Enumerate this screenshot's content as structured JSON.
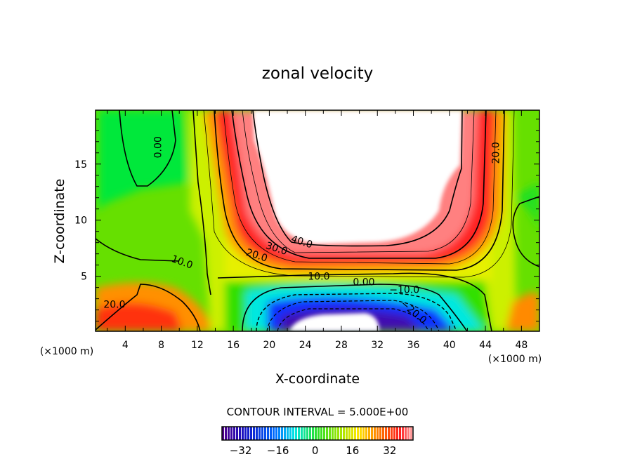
{
  "chart_data": {
    "type": "heatmap",
    "subtype": "filled-contour",
    "title": "zonal velocity",
    "xlabel": "X-coordinate",
    "ylabel": "Z-coordinate",
    "x_unit_label": "(×1000 m)",
    "y_unit_label": "(×1000 m)",
    "xlim": [
      0.7,
      50
    ],
    "ylim": [
      0.1,
      19.8
    ],
    "xticks": [
      4,
      8,
      12,
      16,
      20,
      24,
      28,
      32,
      36,
      40,
      44,
      48
    ],
    "yticks": [
      5,
      10,
      15
    ],
    "contour_interval_text": "CONTOUR INTERVAL = 5.000E+00",
    "contour_interval": 5.0,
    "contour_labels": [
      {
        "text": "0.00",
        "x": 8.0,
        "z": 16.5
      },
      {
        "text": "20.0",
        "x": 45.5,
        "z": 16.0
      },
      {
        "text": "40.0",
        "x": 23.5,
        "z": 7.8
      },
      {
        "text": "30.0",
        "x": 20.7,
        "z": 7.2
      },
      {
        "text": "20.0",
        "x": 18.5,
        "z": 6.6
      },
      {
        "text": "10.0",
        "x": 10.2,
        "z": 6.0
      },
      {
        "text": "10.0",
        "x": 25.5,
        "z": 4.7
      },
      {
        "text": "0.00",
        "x": 30.5,
        "z": 4.2
      },
      {
        "text": "-10.0",
        "x": 35.0,
        "z": 3.5
      },
      {
        "text": "-20.0",
        "x": 35.8,
        "z": 1.6
      },
      {
        "text": "20.0",
        "x": 2.8,
        "z": 2.2
      }
    ],
    "colorbar": {
      "range": [
        -40,
        42
      ],
      "tick_labels": [
        "−32",
        "−16",
        "0",
        "16",
        "32"
      ],
      "tick_values": [
        -32,
        -16,
        0,
        16,
        32
      ]
    },
    "features": [
      {
        "name": "jet-core-max",
        "description_value": ">45",
        "x_range": [
          18,
          41
        ],
        "z_range": [
          8,
          19.8
        ]
      },
      {
        "name": "reverse-flow-min",
        "description_value": "<-40",
        "x_range": [
          21,
          32
        ],
        "z_range": [
          0,
          1.5
        ]
      }
    ]
  }
}
